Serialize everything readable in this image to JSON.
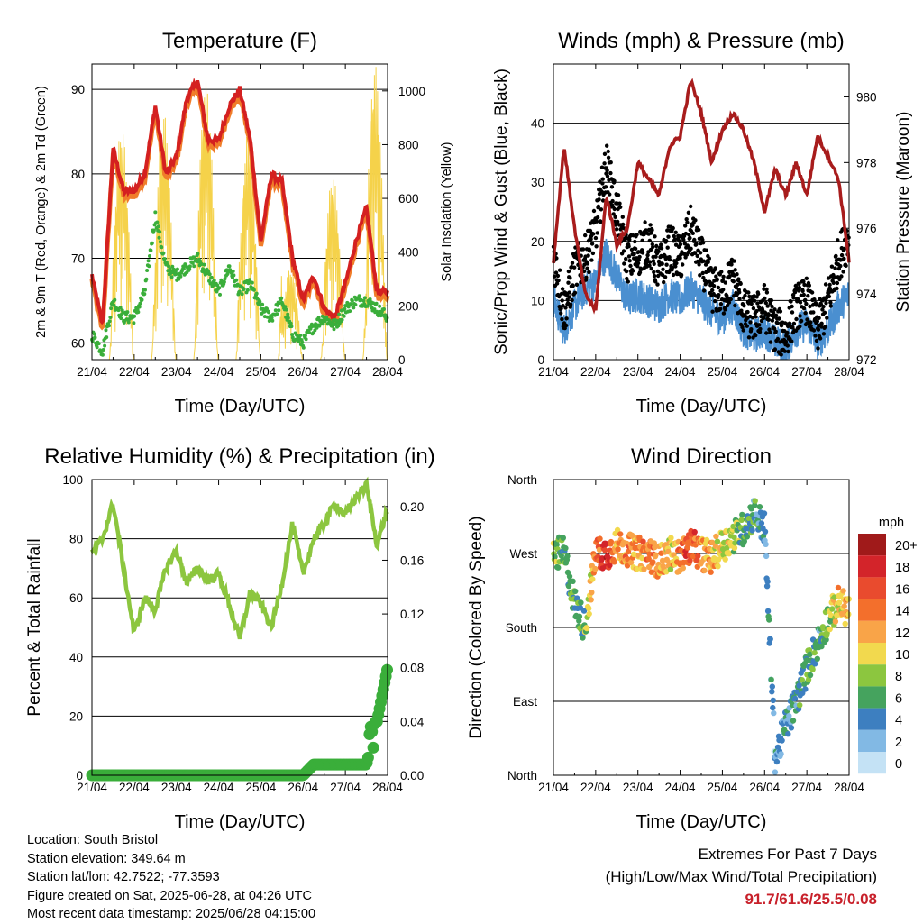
{
  "colors": {
    "temp2m": "#d42020",
    "temp9m": "#f07d2a",
    "dewpoint": "#3aae3a",
    "solar": "#f5d24a",
    "wind": "#4a8fd0",
    "gust": "#000000",
    "pressure": "#a81c1c",
    "rh": "#8cc63f",
    "precip": "#3aae3a",
    "extremes": "#c8202a"
  },
  "days": [
    "21/04",
    "22/04",
    "23/04",
    "24/04",
    "25/04",
    "26/04",
    "27/04",
    "28/04"
  ],
  "xlabel": "Time (Day/UTC)",
  "chart_data": [
    {
      "type": "line",
      "title": "Temperature (F)",
      "xlabel": "Time (Day/UTC)",
      "ylabel": "2m & 9m T (Red, Orange) & 2m Td (Green)",
      "ylabel_right": "Solar Insolation (Yellow)",
      "ylim": [
        58,
        93
      ],
      "ylim_right": [
        0,
        1100
      ],
      "yticks": [
        "60",
        "70",
        "80",
        "90"
      ],
      "yticks_right": [
        "0",
        "200",
        "400",
        "600",
        "800",
        "1000"
      ],
      "x": [
        0,
        0.25,
        0.5,
        0.75,
        1,
        1.25,
        1.5,
        1.75,
        2,
        2.25,
        2.5,
        2.75,
        3,
        3.25,
        3.5,
        3.75,
        4,
        4.25,
        4.5,
        4.75,
        5,
        5.25,
        5.5,
        5.75,
        6,
        6.25,
        6.5,
        6.75,
        7
      ],
      "series": [
        {
          "name": "2m T",
          "values": [
            68,
            62,
            83,
            78,
            78,
            80,
            88,
            80,
            82,
            89,
            91,
            84,
            84,
            88,
            90,
            84,
            72,
            80,
            79,
            70,
            65,
            68,
            64,
            63,
            67,
            72,
            76,
            66,
            66
          ]
        },
        {
          "name": "2m Td",
          "values": [
            61,
            59,
            65,
            63,
            63,
            66,
            75,
            69,
            68,
            69,
            70,
            68,
            66,
            69,
            66,
            67,
            64,
            63,
            65,
            61,
            60,
            62,
            63,
            62,
            64,
            65,
            65,
            64,
            63
          ]
        }
      ],
      "solar_peaks": [
        800,
        870,
        920,
        1040,
        850,
        340,
        690,
        1100
      ]
    },
    {
      "type": "line",
      "title": "Winds (mph) & Pressure (mb)",
      "xlabel": "Time (Day/UTC)",
      "ylabel": "Sonic/Prop Wind & Gust (Blue, Black)",
      "ylabel_right": "Station Pressure (Maroon)",
      "ylim": [
        0,
        50
      ],
      "ylim_right": [
        972,
        981
      ],
      "yticks": [
        "0",
        "10",
        "20",
        "30",
        "40"
      ],
      "yticks_right": [
        "972",
        "974",
        "976",
        "978",
        "980"
      ],
      "x": [
        0,
        0.25,
        0.5,
        0.75,
        1,
        1.25,
        1.5,
        1.75,
        2,
        2.25,
        2.5,
        2.75,
        3,
        3.25,
        3.5,
        3.75,
        4,
        4.25,
        4.5,
        4.75,
        5,
        5.25,
        5.5,
        5.75,
        6,
        6.25,
        6.5,
        6.75,
        7
      ],
      "series": [
        {
          "name": "Wind",
          "values": [
            10,
            5,
            9,
            12,
            13,
            18,
            14,
            10,
            11,
            10,
            9,
            11,
            10,
            12,
            10,
            8,
            7,
            9,
            5,
            4,
            5,
            3,
            2,
            5,
            6,
            3,
            5,
            9,
            11
          ]
        },
        {
          "name": "Gust",
          "values": [
            18,
            8,
            15,
            17,
            22,
            33,
            25,
            17,
            18,
            20,
            15,
            19,
            17,
            22,
            17,
            12,
            11,
            14,
            8,
            7,
            9,
            5,
            4,
            9,
            10,
            5,
            10,
            17,
            21
          ]
        },
        {
          "name": "Pressure",
          "values": [
            975,
            978.5,
            976,
            974,
            973.5,
            977,
            975.5,
            976,
            978,
            977.5,
            977,
            978.5,
            978.8,
            980.5,
            979.5,
            978,
            979,
            979.5,
            979,
            978,
            976.5,
            977.8,
            977,
            978,
            977,
            978.8,
            978.2,
            977.5,
            975
          ]
        }
      ]
    },
    {
      "type": "line",
      "title": "Relative Humidity (%) & Precipitation (in)",
      "xlabel": "Time (Day/UTC)",
      "ylabel": "Percent & Total Rainfall",
      "ylim": [
        0,
        100
      ],
      "ylim_right": [
        0,
        0.22
      ],
      "yticks": [
        "0",
        "20",
        "40",
        "60",
        "80",
        "100"
      ],
      "yticks_right": [
        "0.00",
        "0.04",
        "0.08",
        "0.12",
        "0.16",
        "0.20"
      ],
      "x": [
        0,
        0.25,
        0.5,
        0.75,
        1,
        1.25,
        1.5,
        1.75,
        2,
        2.25,
        2.5,
        2.75,
        3,
        3.25,
        3.5,
        3.75,
        4,
        4.25,
        4.5,
        4.75,
        5,
        5.25,
        5.5,
        5.75,
        6,
        6.25,
        6.5,
        6.75,
        7
      ],
      "series": [
        {
          "name": "RH",
          "values": [
            75,
            80,
            92,
            70,
            48,
            60,
            56,
            70,
            76,
            65,
            70,
            66,
            68,
            58,
            46,
            62,
            58,
            50,
            65,
            85,
            68,
            80,
            85,
            92,
            88,
            94,
            98,
            78,
            90
          ]
        },
        {
          "name": "Precip",
          "values": [
            0,
            0,
            0,
            0,
            0,
            0,
            0,
            0,
            0,
            0,
            0,
            0,
            0,
            0,
            0,
            0,
            0,
            0,
            0,
            0,
            0,
            0.008,
            0.008,
            0.008,
            0.008,
            0.008,
            0.008,
            0.04,
            0.08
          ]
        }
      ]
    },
    {
      "type": "scatter",
      "title": "Wind Direction",
      "xlabel": "Time (Day/UTC)",
      "ylabel": "Direction (Colored By Speed)",
      "ylim": [
        0,
        360
      ],
      "yticks": [
        "North",
        "East",
        "South",
        "West",
        "North"
      ],
      "legend_title": "mph",
      "legend_labels": [
        "20+",
        "18",
        "16",
        "14",
        "12",
        "10",
        "8",
        "6",
        "4",
        "2",
        "0"
      ],
      "legend_colors": [
        "#a01a1a",
        "#d3242a",
        "#e94b2e",
        "#f36f2c",
        "#f9a448",
        "#f2d94e",
        "#8cc63f",
        "#45a35e",
        "#3d7fc0",
        "#82b9e4",
        "#c4e2f5"
      ],
      "legend_position": "right",
      "x": [
        0,
        0.25,
        0.5,
        0.75,
        1,
        1.25,
        1.5,
        1.75,
        2,
        2.25,
        2.5,
        2.75,
        3,
        3.25,
        3.5,
        3.75,
        4,
        4.25,
        4.5,
        4.75,
        5,
        5.25,
        5.5,
        5.75,
        6,
        6.25,
        6.5,
        6.75,
        7
      ],
      "direction": [
        270,
        270,
        210,
        180,
        270,
        270,
        280,
        275,
        270,
        270,
        260,
        270,
        265,
        280,
        270,
        265,
        280,
        290,
        300,
        320,
        300,
        20,
        60,
        90,
        130,
        160,
        190,
        210,
        200
      ],
      "speed": [
        8,
        6,
        5,
        7,
        14,
        18,
        12,
        13,
        12,
        14,
        12,
        10,
        14,
        16,
        13,
        12,
        10,
        9,
        6,
        5,
        4,
        3,
        4,
        5,
        6,
        5,
        7,
        11,
        12
      ]
    }
  ],
  "info": {
    "location": "Location: South Bristol",
    "elevation": "Station elevation: 349.64 m",
    "latlon": "Station lat/lon: 42.7522; -77.3593",
    "created": "Figure created on Sat, 2025-06-28, at 04:26 UTC",
    "recent": "Most recent data timestamp: 2025/06/28 04:15:00"
  },
  "extremes": {
    "title": "Extremes For Past 7 Days",
    "subtitle": "(High/Low/Max Wind/Total Precipitation)",
    "values": "91.7/61.6/25.5/0.08"
  }
}
